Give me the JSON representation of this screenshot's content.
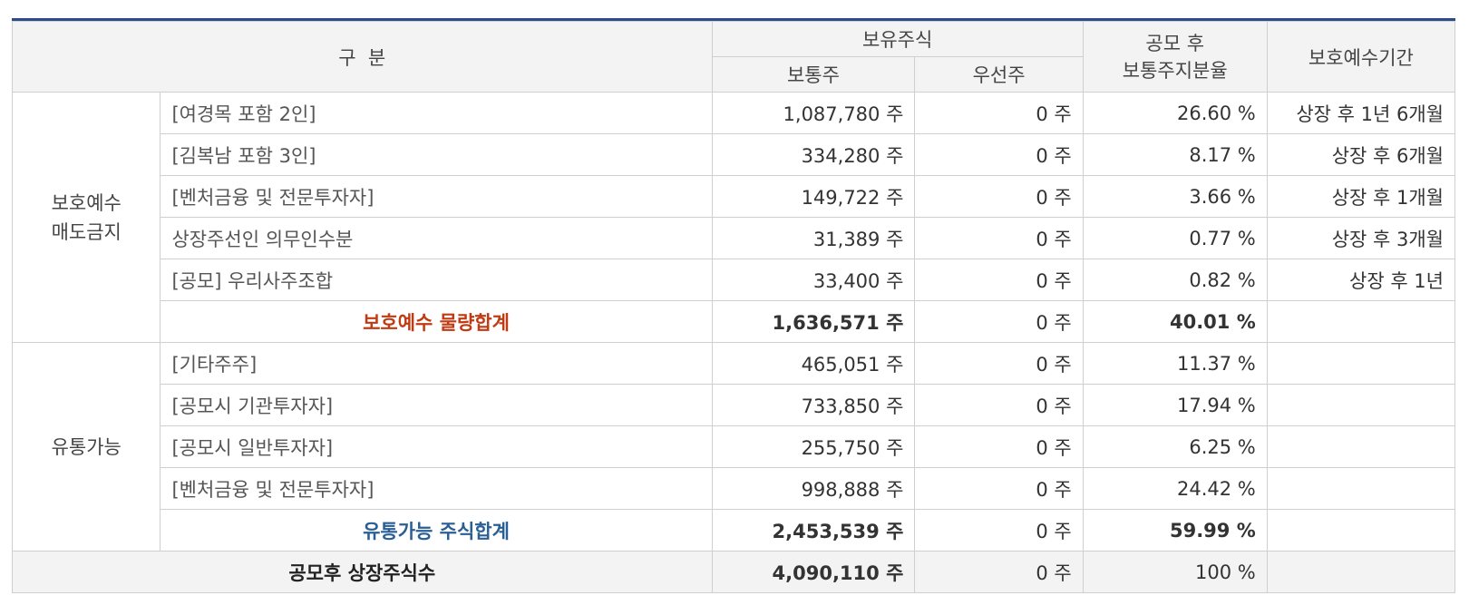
{
  "header": {
    "category": "구  분",
    "holdings": "보유주식",
    "common": "보통주",
    "preferred": "우선주",
    "ratio_line1": "공모 후",
    "ratio_line2": "보통주지분율",
    "lockup_period": "보호예수기간"
  },
  "groups": {
    "lockup": {
      "label_line1": "보호예수",
      "label_line2": "매도금지",
      "rows": [
        {
          "name": "[여경목 포함 2인]",
          "common": "1,087,780 주",
          "preferred": "0 주",
          "ratio": "26.60 %",
          "period": "상장 후 1년 6개월"
        },
        {
          "name": "[김복남 포함 3인]",
          "common": "334,280 주",
          "preferred": "0 주",
          "ratio": "8.17 %",
          "period": "상장 후 6개월"
        },
        {
          "name": "[벤처금융 및 전문투자자]",
          "common": "149,722 주",
          "preferred": "0 주",
          "ratio": "3.66 %",
          "period": "상장 후 1개월"
        },
        {
          "name": "상장주선인 의무인수분",
          "common": "31,389 주",
          "preferred": "0 주",
          "ratio": "0.77 %",
          "period": "상장 후 3개월"
        },
        {
          "name": "[공모] 우리사주조합",
          "common": "33,400 주",
          "preferred": "0 주",
          "ratio": "0.82 %",
          "period": "상장 후 1년"
        }
      ],
      "subtotal": {
        "label": "보호예수 물량합계",
        "common": "1,636,571 주",
        "preferred": "0 주",
        "ratio": "40.01 %"
      }
    },
    "tradable": {
      "label": "유통가능",
      "rows": [
        {
          "name": "[기타주주]",
          "common": "465,051 주",
          "preferred": "0 주",
          "ratio": "11.37 %"
        },
        {
          "name": "[공모시 기관투자자]",
          "common": "733,850 주",
          "preferred": "0 주",
          "ratio": "17.94 %"
        },
        {
          "name": "[공모시 일반투자자]",
          "common": "255,750 주",
          "preferred": "0 주",
          "ratio": "6.25 %"
        },
        {
          "name": "[벤처금융 및 전문투자자]",
          "common": "998,888 주",
          "preferred": "0 주",
          "ratio": "24.42 %"
        }
      ],
      "subtotal": {
        "label": "유통가능 주식합계",
        "common": "2,453,539 주",
        "preferred": "0 주",
        "ratio": "59.99 %"
      }
    }
  },
  "total": {
    "label": "공모후 상장주식수",
    "common": "4,090,110 주",
    "preferred": "0 주",
    "ratio": "100 %"
  }
}
